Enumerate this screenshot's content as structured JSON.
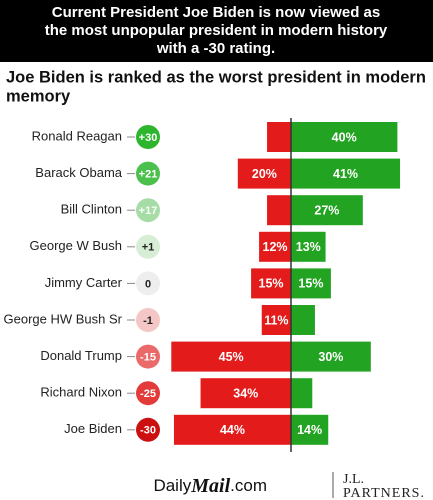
{
  "chart_data": {
    "type": "diverging-bar",
    "title": [
      "Current President Joe Biden is now viewed as",
      "the most unpopular president in modern history",
      "with a -30 rating."
    ],
    "subtitle": [
      "Joe Biden is ranked as the worst president in modern",
      "memory"
    ],
    "categories": [
      "Ronald Reagan",
      "Barack Obama",
      "Bill Clinton",
      "George W Bush",
      "Jimmy Carter",
      "George HW Bush Sr",
      "Donald Trump",
      "Richard Nixon",
      "Joe Biden"
    ],
    "net": {
      "values": [
        30,
        21,
        17,
        1,
        0,
        -1,
        -15,
        -25,
        -30
      ],
      "value_labels": [
        "+30",
        "+21",
        "+17",
        "+1",
        "0",
        "-1",
        "-15",
        "-25",
        "-30"
      ],
      "colors": [
        "#2db52d",
        "#4cc04c",
        "#a6dca6",
        "#d5eed5",
        "#eeeeee",
        "#f5c6c6",
        "#ea6a6a",
        "#e33a3a",
        "#cc0f0f"
      ]
    },
    "negative": {
      "values": [
        9,
        20,
        9,
        12,
        15,
        11,
        45,
        34,
        44
      ],
      "value_labels": [
        null,
        "20%",
        null,
        "12%",
        "15%",
        "11%",
        "45%",
        "34%",
        "44%"
      ],
      "color": "#e31b1b"
    },
    "positive": {
      "values": [
        40,
        41,
        27,
        13,
        15,
        9,
        30,
        8,
        14
      ],
      "value_labels": [
        "40%",
        "41%",
        "27%",
        "13%",
        "15%",
        null,
        "30%",
        null,
        "14%"
      ],
      "color": "#22a322"
    },
    "xlim": [
      -50,
      50
    ]
  },
  "footer": {
    "daily_mail": [
      "Daily",
      "Mail",
      ".com"
    ],
    "jl_partners": [
      "J.L.",
      "PARTNERS."
    ]
  }
}
